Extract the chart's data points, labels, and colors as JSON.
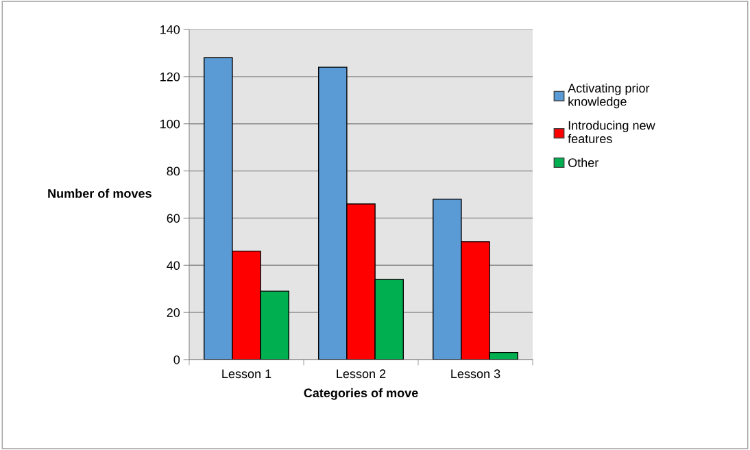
{
  "chart_data": {
    "type": "bar",
    "xlabel": "Categories of move",
    "ylabel": "Number of moves",
    "categories": [
      "Lesson 1",
      "Lesson 2",
      "Lesson 3"
    ],
    "series": [
      {
        "name": "Activating prior knowledge",
        "color": "#5b9bd5",
        "values": [
          128,
          124,
          68
        ]
      },
      {
        "name": "Introducing new features",
        "color": "#ff0000",
        "values": [
          46,
          66,
          50
        ]
      },
      {
        "name": "Other",
        "color": "#00b050",
        "values": [
          29,
          34,
          3
        ]
      }
    ],
    "ylim": [
      0,
      140
    ],
    "yticks": [
      0,
      20,
      40,
      60,
      80,
      100,
      120,
      140
    ],
    "grid": "y",
    "legend": "right"
  }
}
